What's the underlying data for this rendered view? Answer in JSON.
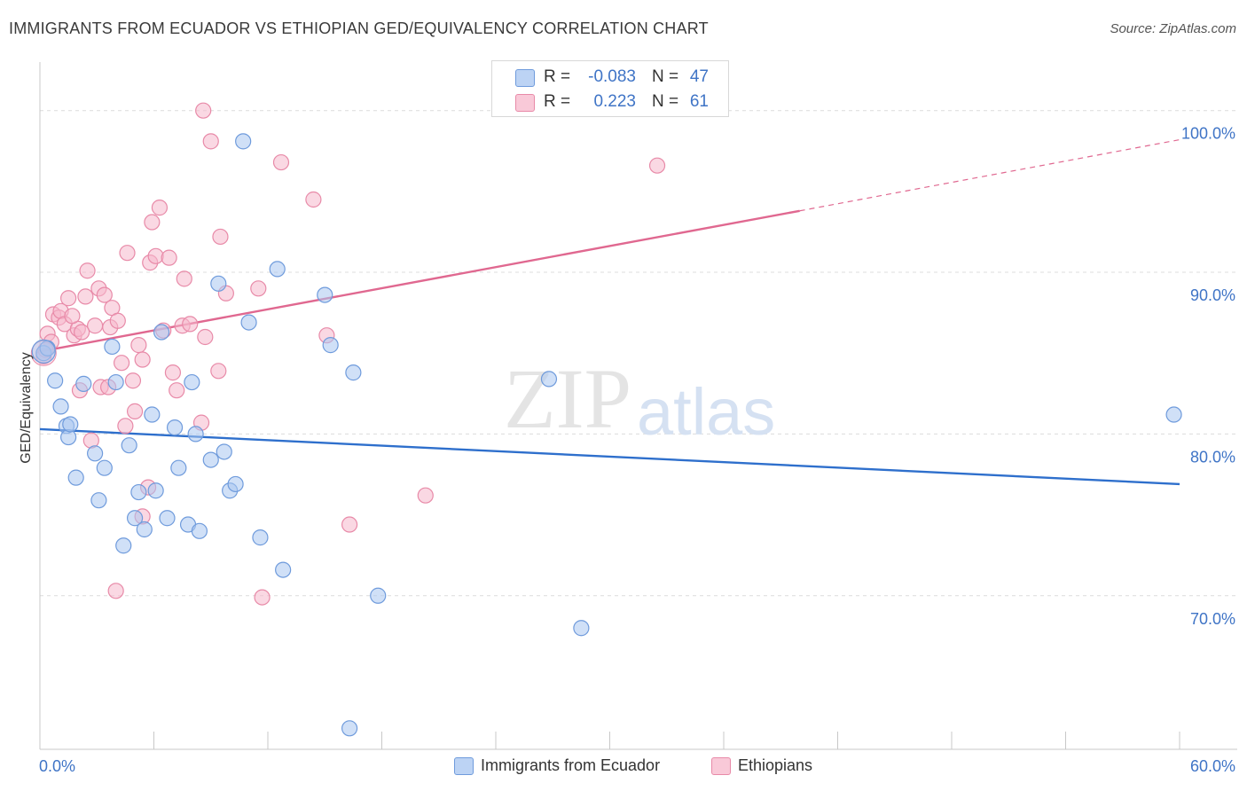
{
  "header": {
    "title": "IMMIGRANTS FROM ECUADOR VS ETHIOPIAN GED/EQUIVALENCY CORRELATION CHART",
    "source": "Source: ZipAtlas.com"
  },
  "legend_top": {
    "rows": [
      {
        "r_label": "R =",
        "r_value": "-0.083",
        "n_label": "N =",
        "n_value": "47"
      },
      {
        "r_label": "R =",
        "r_value": "0.223",
        "n_label": "N =",
        "n_value": "61"
      }
    ]
  },
  "legend_bottom": {
    "series_a": "Immigrants from Ecuador",
    "series_b": "Ethiopians"
  },
  "colors": {
    "blue_fill": "#a9c6f0",
    "blue_stroke": "#6f9bdc",
    "blue_line": "#2e6fcc",
    "pink_fill": "#f6b8cc",
    "pink_stroke": "#e88aa8",
    "pink_line": "#e06890",
    "tick_label": "#3f74c6",
    "grid": "#dcdcdc"
  },
  "chart_data": {
    "type": "scatter",
    "title": "IMMIGRANTS FROM ECUADOR VS ETHIOPIAN GED/EQUIVALENCY CORRELATION CHART",
    "xlabel": "",
    "ylabel": "GED/Equivalency",
    "xlim": [
      0,
      60
    ],
    "ylim": [
      60.5,
      103
    ],
    "x_tick_labels": [
      "0.0%",
      "60.0%"
    ],
    "y_ticks": [
      70,
      80,
      90,
      100
    ],
    "y_tick_labels": [
      "70.0%",
      "80.0%",
      "90.0%",
      "100.0%"
    ],
    "grid": true,
    "watermark": "ZIPatlas",
    "series": [
      {
        "name": "Immigrants from Ecuador",
        "color": "blue",
        "points": [
          [
            0.2,
            85.0
          ],
          [
            0.8,
            83.3
          ],
          [
            1.1,
            81.7
          ],
          [
            1.4,
            80.5
          ],
          [
            1.5,
            79.8
          ],
          [
            1.6,
            80.6
          ],
          [
            1.9,
            77.3
          ],
          [
            2.3,
            83.1
          ],
          [
            2.9,
            78.8
          ],
          [
            3.1,
            75.9
          ],
          [
            3.4,
            77.9
          ],
          [
            3.8,
            85.4
          ],
          [
            4.0,
            83.2
          ],
          [
            4.4,
            73.1
          ],
          [
            4.7,
            79.3
          ],
          [
            5.0,
            74.8
          ],
          [
            5.2,
            76.4
          ],
          [
            5.5,
            74.1
          ],
          [
            5.9,
            81.2
          ],
          [
            6.1,
            76.5
          ],
          [
            6.4,
            86.3
          ],
          [
            6.7,
            74.8
          ],
          [
            7.1,
            80.4
          ],
          [
            7.3,
            77.9
          ],
          [
            7.8,
            74.4
          ],
          [
            8.0,
            83.2
          ],
          [
            8.2,
            80.0
          ],
          [
            8.4,
            74.0
          ],
          [
            9.0,
            78.4
          ],
          [
            9.4,
            89.3
          ],
          [
            9.7,
            78.9
          ],
          [
            10.0,
            76.5
          ],
          [
            10.3,
            76.9
          ],
          [
            10.7,
            98.1
          ],
          [
            11.0,
            86.9
          ],
          [
            11.6,
            73.6
          ],
          [
            12.5,
            90.2
          ],
          [
            12.8,
            71.6
          ],
          [
            15.0,
            88.6
          ],
          [
            15.3,
            85.5
          ],
          [
            16.5,
            83.8
          ],
          [
            17.8,
            70.0
          ],
          [
            26.8,
            83.4
          ],
          [
            28.5,
            68.0
          ],
          [
            16.3,
            61.8
          ],
          [
            59.7,
            81.2
          ],
          [
            0.4,
            85.3
          ]
        ]
      },
      {
        "name": "Ethiopians",
        "color": "pink",
        "points": [
          [
            0.2,
            84.8
          ],
          [
            0.4,
            86.2
          ],
          [
            0.6,
            85.7
          ],
          [
            0.7,
            87.4
          ],
          [
            1.0,
            87.2
          ],
          [
            1.1,
            87.6
          ],
          [
            1.3,
            86.8
          ],
          [
            1.5,
            88.4
          ],
          [
            1.8,
            86.1
          ],
          [
            2.0,
            86.5
          ],
          [
            2.1,
            82.7
          ],
          [
            2.4,
            88.5
          ],
          [
            2.5,
            90.1
          ],
          [
            2.7,
            79.6
          ],
          [
            2.9,
            86.7
          ],
          [
            3.1,
            89.0
          ],
          [
            3.2,
            82.9
          ],
          [
            3.4,
            88.6
          ],
          [
            3.6,
            82.9
          ],
          [
            3.7,
            86.6
          ],
          [
            3.8,
            87.8
          ],
          [
            4.0,
            70.3
          ],
          [
            4.1,
            87.0
          ],
          [
            4.3,
            84.4
          ],
          [
            4.5,
            80.5
          ],
          [
            4.6,
            91.2
          ],
          [
            4.9,
            83.3
          ],
          [
            5.0,
            81.4
          ],
          [
            5.2,
            85.5
          ],
          [
            5.4,
            74.9
          ],
          [
            5.4,
            84.6
          ],
          [
            5.7,
            76.7
          ],
          [
            5.8,
            90.6
          ],
          [
            5.9,
            93.1
          ],
          [
            6.1,
            91.0
          ],
          [
            6.3,
            94.0
          ],
          [
            6.5,
            86.4
          ],
          [
            6.8,
            90.9
          ],
          [
            7.0,
            83.8
          ],
          [
            7.2,
            82.7
          ],
          [
            7.5,
            86.7
          ],
          [
            7.6,
            89.6
          ],
          [
            7.9,
            86.8
          ],
          [
            8.5,
            80.7
          ],
          [
            8.6,
            100.0
          ],
          [
            8.7,
            86.0
          ],
          [
            9.0,
            98.1
          ],
          [
            9.4,
            83.9
          ],
          [
            9.5,
            92.2
          ],
          [
            9.8,
            88.7
          ],
          [
            11.5,
            89.0
          ],
          [
            11.7,
            69.9
          ],
          [
            12.7,
            96.8
          ],
          [
            14.4,
            94.5
          ],
          [
            15.1,
            86.1
          ],
          [
            16.3,
            74.4
          ],
          [
            20.3,
            76.2
          ],
          [
            32.5,
            96.6
          ],
          [
            0.3,
            85.2
          ],
          [
            1.7,
            87.3
          ],
          [
            2.2,
            86.3
          ]
        ]
      }
    ],
    "trend_lines": [
      {
        "series": "Immigrants from Ecuador",
        "x": [
          0,
          60
        ],
        "y": [
          80.3,
          76.9
        ],
        "style": "solid"
      },
      {
        "series": "Ethiopians",
        "x": [
          0,
          40
        ],
        "y": [
          85.1,
          93.8
        ],
        "style": "solid"
      },
      {
        "series": "Ethiopians",
        "x": [
          40,
          60
        ],
        "y": [
          93.8,
          98.2
        ],
        "style": "dashed"
      }
    ]
  }
}
